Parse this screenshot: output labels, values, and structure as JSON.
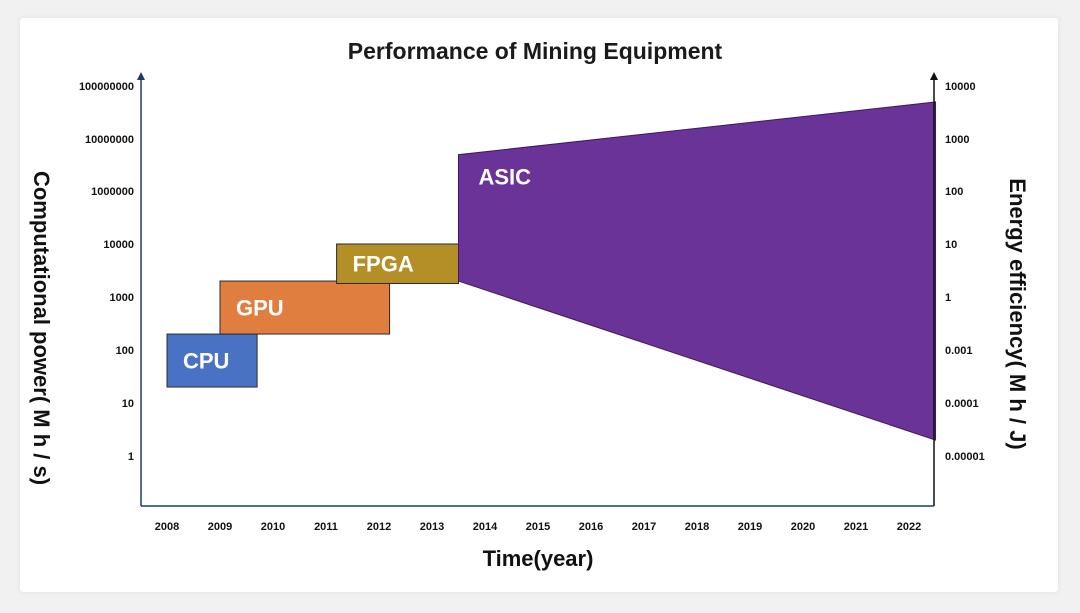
{
  "chart_data": {
    "type": "area",
    "title": "Performance of Mining Equipment",
    "xlabel": "Time(year)",
    "ylabel": "Computational power( M h / s)",
    "y2label": "Energy efficiency( M h / J)",
    "x_ticks": [
      "2008",
      "2009",
      "2010",
      "2011",
      "2012",
      "2013",
      "2014",
      "2015",
      "2016",
      "2017",
      "2018",
      "2019",
      "2020",
      "2021",
      "2022"
    ],
    "y_left_ticks": [
      "1",
      "10",
      "100",
      "1000",
      "10000",
      "1000000",
      "10000000",
      "100000000"
    ],
    "y_right_ticks": [
      "0.00001",
      "0.0001",
      "0.001",
      "1",
      "10",
      "100",
      "1000",
      "10000"
    ],
    "eras": [
      {
        "name": "CPU",
        "start_year": 2008.0,
        "end_year": 2009.7,
        "power_low": 20,
        "power_high": 200,
        "color": "#4a72c4"
      },
      {
        "name": "GPU",
        "start_year": 2009.0,
        "end_year": 2012.2,
        "power_low": 200,
        "power_high": 2000,
        "color": "#e07e3f"
      },
      {
        "name": "FPGA",
        "start_year": 2011.2,
        "end_year": 2013.5,
        "power_low": 1800,
        "power_high": 10000,
        "color": "#b48f27"
      },
      {
        "name": "ASIC",
        "start_year": 2013.5,
        "end_year": 2022.5,
        "left_top": 5000000,
        "left_bottom": 2000,
        "right_top_efficiency": 5000,
        "right_bottom_efficiency": 2e-05,
        "color": "#6a3397"
      }
    ],
    "colors": {
      "axis": "#1f3a6b",
      "text": "#111111"
    }
  }
}
